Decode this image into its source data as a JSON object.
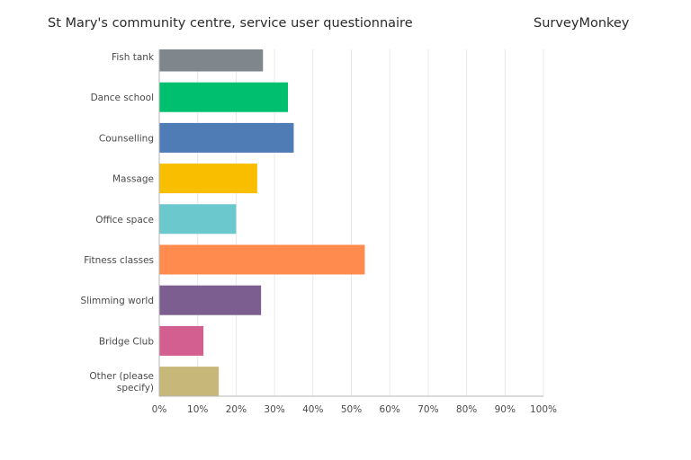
{
  "header": {
    "title": "St Mary's community centre, service user questionnaire",
    "brand": "SurveyMonkey"
  },
  "chart_data": {
    "type": "bar",
    "orientation": "horizontal",
    "categories": [
      "Fish tank",
      "Dance school",
      "Counselling",
      "Massage",
      "Office space",
      "Fitness classes",
      "Slimming world",
      "Bridge Club",
      "Other (please specify)"
    ],
    "values": [
      27,
      33.5,
      35,
      25.5,
      20,
      53.5,
      26.5,
      11.5,
      15.5
    ],
    "colors": [
      "#7f868c",
      "#00bf6f",
      "#507cb6",
      "#f9be00",
      "#6bc8cd",
      "#ff8b4f",
      "#7d5e90",
      "#d25f90",
      "#c7b879"
    ],
    "xlim": [
      0,
      100
    ],
    "ticks": [
      "0%",
      "10%",
      "20%",
      "30%",
      "40%",
      "50%",
      "60%",
      "70%",
      "80%",
      "90%",
      "100%"
    ],
    "grid": true,
    "title": "",
    "xlabel": "",
    "ylabel": ""
  }
}
